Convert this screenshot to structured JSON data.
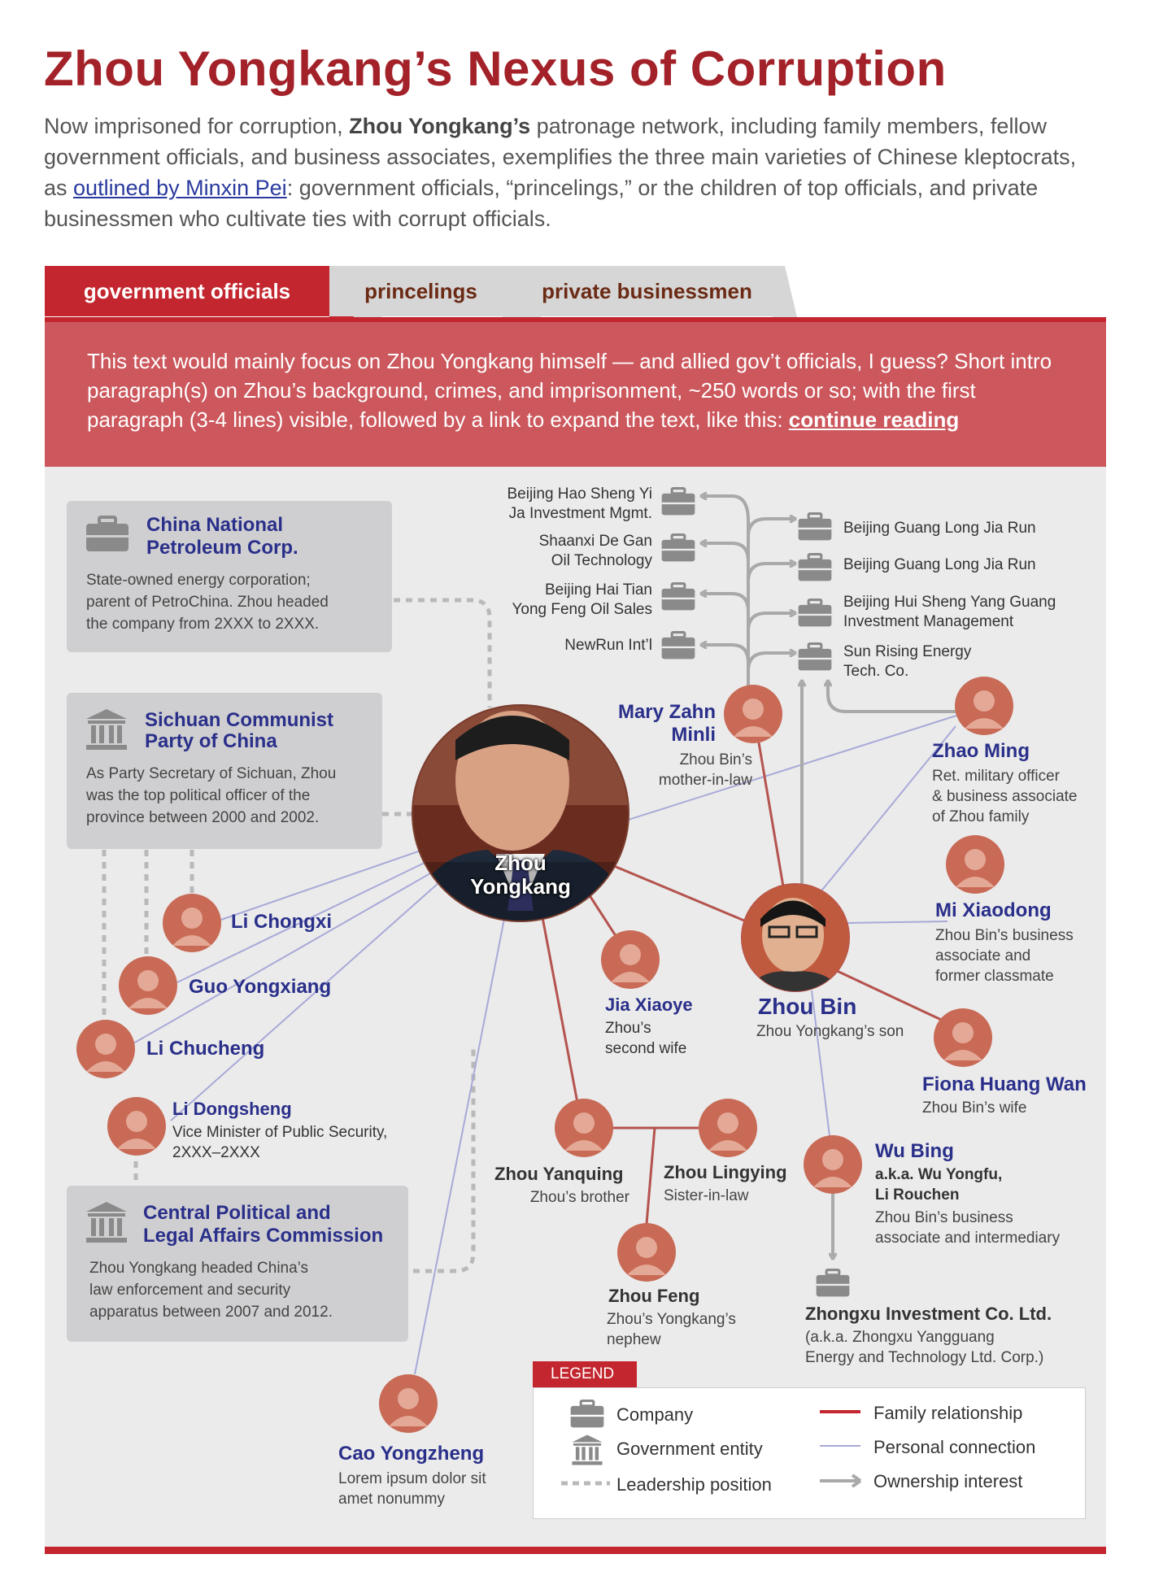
{
  "title": "Zhou Yongkang’s Nexus of Corruption",
  "intro": {
    "part1": "Now imprisoned for corruption, ",
    "bold": "Zhou Yongkang’s",
    "part2": " patronage network, including family members, fellow government officials, and business associates, exemplifies the three main varieties of Chinese kleptocrats, as ",
    "link": "outlined by Minxin Pei",
    "part3": ": government officials, “princelings,” or the children of top officials, and private businessmen who cultivate ties with corrupt officials."
  },
  "tabs": [
    {
      "label": "government officials"
    },
    {
      "label": "princelings"
    },
    {
      "label": "private businessmen"
    }
  ],
  "banner": {
    "text": "This text would mainly focus on Zhou Yongkang himself — and allied gov’t officials, I guess? Short intro paragraph(s) on Zhou’s background, crimes, and imprisonment, ~250 words or so; with the first paragraph (3-4 lines) visible, followed by a link to expand the text, like this: ",
    "link": "continue reading"
  },
  "boxes": {
    "cnpc": {
      "title1": "China National",
      "title2": "Petroleum Corp.",
      "line1": "State-owned energy corporation;",
      "line2": "parent of PetroChina. Zhou headed",
      "line3": "the company from 2XXX to 2XXX."
    },
    "sichuan": {
      "title1": "Sichuan Communist",
      "title2": "Party of China",
      "line1": "As Party Secretary of Sichuan, Zhou",
      "line2": "was the top political officer of the",
      "line3": "province between 2000 and 2002."
    },
    "cpla": {
      "title1": "Central Political and",
      "title2": "Legal Affairs Commission",
      "line1": "Zhou Yongkang headed China’s",
      "line2": "law enforcement and security",
      "line3": "apparatus between 2007 and 2012."
    }
  },
  "people": {
    "zhou_yongkang": {
      "name1": "Zhou",
      "name2": "Yongkang"
    },
    "zhou_bin": {
      "name": "Zhou Bin",
      "desc": "Zhou Yongkang’s son"
    },
    "mary": {
      "name1": "Mary Zahn",
      "name2": "Minli",
      "desc1": "Zhou Bin’s",
      "desc2": "mother-in-law"
    },
    "zhao_ming": {
      "name": "Zhao Ming",
      "desc1": "Ret. military officer",
      "desc2": "& business associate",
      "desc3": "of Zhou family"
    },
    "mi_xiaodong": {
      "name": "Mi Xiaodong",
      "desc1": "Zhou Bin’s business",
      "desc2": "associate and",
      "desc3": "former classmate"
    },
    "fiona": {
      "name": "Fiona Huang Wan",
      "desc": "Zhou Bin’s wife"
    },
    "wu_bing": {
      "name": "Wu Bing",
      "aka1": "a.k.a. Wu Yongfu,",
      "aka2": "Li Rouchen",
      "desc1": "Zhou Bin’s business",
      "desc2": "associate and intermediary"
    },
    "jia_xiaoye": {
      "name": "Jia Xiaoye",
      "desc1": "Zhou’s",
      "desc2": "second wife"
    },
    "zhou_yanquing": {
      "name": "Zhou Yanquing",
      "desc": "Zhou’s brother"
    },
    "zhou_lingying": {
      "name": "Zhou Lingying",
      "desc": "Sister-in-law"
    },
    "zhou_feng": {
      "name": "Zhou Feng",
      "desc1": "Zhou’s Yongkang’s",
      "desc2": "nephew"
    },
    "li_chongxi": {
      "name": "Li Chongxi"
    },
    "guo_yongxiang": {
      "name": "Guo Yongxiang"
    },
    "li_chucheng": {
      "name": "Li Chucheng"
    },
    "li_dongsheng": {
      "name": "Li Dongsheng",
      "desc1": "Vice Minister of Public Security,",
      "desc2": "2XXX–2XXX"
    },
    "cao_yongzheng": {
      "name": "Cao Yongzheng",
      "desc1": "Lorem ipsum dolor sit",
      "desc2": "amet nonummy"
    }
  },
  "companies": {
    "hao_sheng": {
      "line1": "Beijing Hao Sheng Yi",
      "line2": "Ja Investment Mgmt."
    },
    "de_gan": {
      "line1": "Shaanxi De Gan",
      "line2": "Oil Technology"
    },
    "hai_tian": {
      "line1": "Beijing Hai Tian",
      "line2": "Yong Feng Oil Sales"
    },
    "newrun": {
      "line1": "NewRun Int’l"
    },
    "guang_long_1": {
      "line1": "Beijing Guang Long Jia Run"
    },
    "guang_long_2": {
      "line1": "Beijing Guang Long Jia Run"
    },
    "hui_sheng": {
      "line1": "Beijing Hui Sheng Yang Guang",
      "line2": "Investment Management"
    },
    "sun_rising": {
      "line1": "Sun Rising Energy",
      "line2": "Tech. Co."
    },
    "zhongxu": {
      "name": "Zhongxu Investment Co. Ltd.",
      "line1": "(a.k.a. Zhongxu Yangguang",
      "line2": "Energy and Technology Ltd. Corp.)"
    }
  },
  "legend": {
    "tag": "LEGEND",
    "company": "Company",
    "government": "Government entity",
    "leadership": "Leadership position",
    "family": "Family relationship",
    "personal": "Personal connection",
    "ownership": "Ownership interest"
  },
  "colors": {
    "title_red": "#a32128",
    "tab_red": "#c3262e",
    "banner": "#cc575c",
    "panel": "#ebebeb",
    "name_blue": "#2a2f8a",
    "family_line": "#b5534e",
    "personal_line": "#a8a9d8",
    "ownership_arrow": "#a9a9a9",
    "avatar": "#c86a56"
  }
}
